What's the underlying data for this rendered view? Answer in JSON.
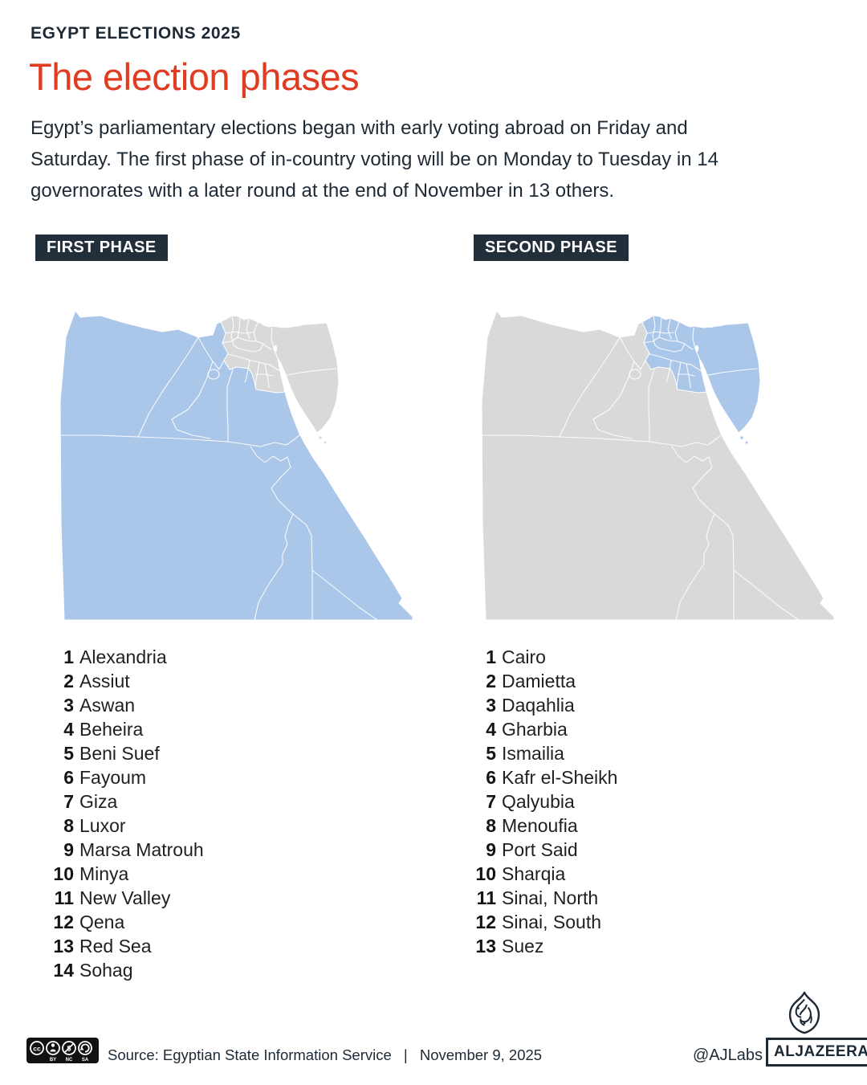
{
  "header": {
    "kicker": "EGYPT ELECTIONS 2025",
    "title": "The election phases",
    "intro_lines": [
      "Egypt’s parliamentary elections began with early voting abroad on Friday and",
      "Saturday. The first phase of in-country voting will be on Monday to Tuesday in 14",
      "governorates with a later round at the end of November in 13 others."
    ]
  },
  "colors": {
    "accent_red": "#e03c22",
    "navy": "#222e3a",
    "phase_blue": "#aac6e8",
    "inactive_gray": "#d9d9d9",
    "map_border": "#ffffff",
    "list_text": "#1f1f1f"
  },
  "phases": [
    {
      "label": "FIRST PHASE",
      "highlight": "mainland",
      "items": [
        {
          "n": "1",
          "name": "Alexandria"
        },
        {
          "n": "2",
          "name": "Assiut"
        },
        {
          "n": "3",
          "name": "Aswan"
        },
        {
          "n": "4",
          "name": "Beheira"
        },
        {
          "n": "5",
          "name": "Beni Suef"
        },
        {
          "n": "6",
          "name": "Fayoum"
        },
        {
          "n": "7",
          "name": "Giza"
        },
        {
          "n": "8",
          "name": "Luxor"
        },
        {
          "n": "9",
          "name": "Marsa Matrouh"
        },
        {
          "n": "10",
          "name": "Minya"
        },
        {
          "n": "11",
          "name": "New Valley"
        },
        {
          "n": "12",
          "name": "Qena"
        },
        {
          "n": "13",
          "name": "Red Sea"
        },
        {
          "n": "14",
          "name": "Sohag"
        }
      ]
    },
    {
      "label": "SECOND PHASE",
      "highlight": "cluster",
      "items": [
        {
          "n": "1",
          "name": "Cairo"
        },
        {
          "n": "2",
          "name": "Damietta"
        },
        {
          "n": "3",
          "name": "Daqahlia"
        },
        {
          "n": "4",
          "name": "Gharbia"
        },
        {
          "n": "5",
          "name": "Ismailia"
        },
        {
          "n": "6",
          "name": "Kafr el-Sheikh"
        },
        {
          "n": "7",
          "name": "Qalyubia"
        },
        {
          "n": "8",
          "name": "Menoufia"
        },
        {
          "n": "9",
          "name": "Port Said"
        },
        {
          "n": "10",
          "name": "Sharqia"
        },
        {
          "n": "11",
          "name": "Sinai, North"
        },
        {
          "n": "12",
          "name": "Sinai, South"
        },
        {
          "n": "13",
          "name": "Suez"
        }
      ]
    }
  ],
  "footer": {
    "license_labels": [
      "BY",
      "NC",
      "SA"
    ],
    "license_cc": "CC",
    "source_label": "Source:",
    "source": "Egyptian State Information Service",
    "separator": "|",
    "date": "November 9, 2025",
    "credit": "@AJLabs",
    "brand": "ALJAZEERA"
  }
}
